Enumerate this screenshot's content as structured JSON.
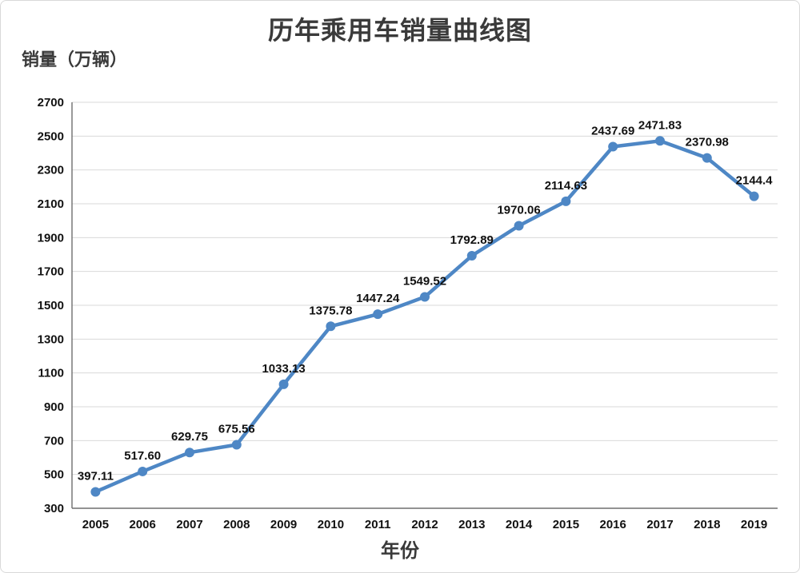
{
  "chart_data": {
    "type": "line",
    "title": "历年乘用车销量曲线图",
    "ylabel": "销量（万辆）",
    "xlabel": "年份",
    "categories": [
      "2005",
      "2006",
      "2007",
      "2008",
      "2009",
      "2010",
      "2011",
      "2012",
      "2013",
      "2014",
      "2015",
      "2016",
      "2017",
      "2018",
      "2019"
    ],
    "values": [
      397.11,
      517.6,
      629.75,
      675.56,
      1033.13,
      1375.78,
      1447.24,
      1549.52,
      1792.89,
      1970.06,
      2114.63,
      2437.69,
      2471.83,
      2370.98,
      2144.4
    ],
    "value_labels": [
      "397.11",
      "517.60",
      "629.75",
      "675.56",
      "1033.13",
      "1375.78",
      "1447.24",
      "1549.52",
      "1792.89",
      "1970.06",
      "2114.63",
      "2437.69",
      "2471.83",
      "2370.98",
      "2144.4"
    ],
    "ylim": [
      300,
      2700
    ],
    "ytick_step": 200,
    "ytick_labels": [
      "300",
      "500",
      "700",
      "900",
      "1100",
      "1300",
      "1500",
      "1700",
      "1900",
      "2100",
      "2300",
      "2500",
      "2700"
    ],
    "grid": true,
    "legend": "none",
    "colors": {
      "line": "#4E87C5",
      "marker": "#4E87C5",
      "gridline": "#d9d9d9",
      "axis_line": "#6e6e6e",
      "text": "#111111",
      "title_text": "#3a3a3a",
      "background": "#ffffff",
      "frame_border": "#d9d9d9"
    }
  }
}
